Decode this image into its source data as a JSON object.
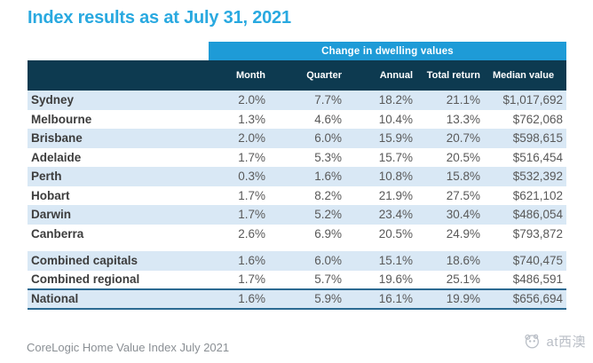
{
  "title": "Index results as at July 31, 2021",
  "colors": {
    "title_blue": "#29a9e0",
    "span_header_blue": "#1e9bd7",
    "column_header_navy": "#0d3a50",
    "row_shade_blue": "#d9e8f5",
    "total_border_blue": "#2b6a92",
    "label_text": "#3d3d3d",
    "value_text": "#595959"
  },
  "table": {
    "span_header": "Change in dwelling values",
    "columns": [
      "Month",
      "Quarter",
      "Annual",
      "Total return",
      "Median value"
    ],
    "rows": [
      {
        "label": "Sydney",
        "values": [
          "2.0%",
          "7.7%",
          "18.2%",
          "21.1%",
          "$1,017,692"
        ]
      },
      {
        "label": "Melbourne",
        "values": [
          "1.3%",
          "4.6%",
          "10.4%",
          "13.3%",
          "$762,068"
        ]
      },
      {
        "label": "Brisbane",
        "values": [
          "2.0%",
          "6.0%",
          "15.9%",
          "20.7%",
          "$598,615"
        ]
      },
      {
        "label": "Adelaide",
        "values": [
          "1.7%",
          "5.3%",
          "15.7%",
          "20.5%",
          "$516,454"
        ]
      },
      {
        "label": "Perth",
        "values": [
          "0.3%",
          "1.6%",
          "10.8%",
          "15.8%",
          "$532,392"
        ]
      },
      {
        "label": "Hobart",
        "values": [
          "1.7%",
          "8.2%",
          "21.9%",
          "27.5%",
          "$621,102"
        ]
      },
      {
        "label": "Darwin",
        "values": [
          "1.7%",
          "5.2%",
          "23.4%",
          "30.4%",
          "$486,054"
        ]
      },
      {
        "label": "Canberra",
        "values": [
          "2.6%",
          "6.9%",
          "20.5%",
          "24.9%",
          "$793,872"
        ]
      }
    ],
    "summary_rows": [
      {
        "label": "Combined capitals",
        "values": [
          "1.6%",
          "6.0%",
          "15.1%",
          "18.6%",
          "$740,475"
        ]
      },
      {
        "label": "Combined regional",
        "values": [
          "1.7%",
          "5.7%",
          "19.6%",
          "25.1%",
          "$486,591"
        ]
      }
    ],
    "total_row": {
      "label": "National",
      "values": [
        "1.6%",
        "5.9%",
        "16.1%",
        "19.9%",
        "$656,694"
      ]
    }
  },
  "footer": {
    "source_note": "CoreLogic Home Value Index July 2021",
    "watermark_text": "at西澳",
    "watermark_icon": "panda-logo-icon"
  },
  "chart_data": {
    "type": "table",
    "title": "Index results as at July 31, 2021",
    "group_header": "Change in dwelling values",
    "columns": [
      "Month",
      "Quarter",
      "Annual",
      "Total return",
      "Median value"
    ],
    "rows": [
      [
        "Sydney",
        "2.0%",
        "7.7%",
        "18.2%",
        "21.1%",
        "$1,017,692"
      ],
      [
        "Melbourne",
        "1.3%",
        "4.6%",
        "10.4%",
        "13.3%",
        "$762,068"
      ],
      [
        "Brisbane",
        "2.0%",
        "6.0%",
        "15.9%",
        "20.7%",
        "$598,615"
      ],
      [
        "Adelaide",
        "1.7%",
        "5.3%",
        "15.7%",
        "20.5%",
        "$516,454"
      ],
      [
        "Perth",
        "0.3%",
        "1.6%",
        "10.8%",
        "15.8%",
        "$532,392"
      ],
      [
        "Hobart",
        "1.7%",
        "8.2%",
        "21.9%",
        "27.5%",
        "$621,102"
      ],
      [
        "Darwin",
        "1.7%",
        "5.2%",
        "23.4%",
        "30.4%",
        "$486,054"
      ],
      [
        "Canberra",
        "2.6%",
        "6.9%",
        "20.5%",
        "24.9%",
        "$793,872"
      ],
      [
        "Combined capitals",
        "1.6%",
        "6.0%",
        "15.1%",
        "18.6%",
        "$740,475"
      ],
      [
        "Combined regional",
        "1.7%",
        "5.7%",
        "19.6%",
        "25.1%",
        "$486,591"
      ],
      [
        "National",
        "1.6%",
        "5.9%",
        "16.1%",
        "19.9%",
        "$656,694"
      ]
    ],
    "source": "CoreLogic Home Value Index July 2021"
  }
}
